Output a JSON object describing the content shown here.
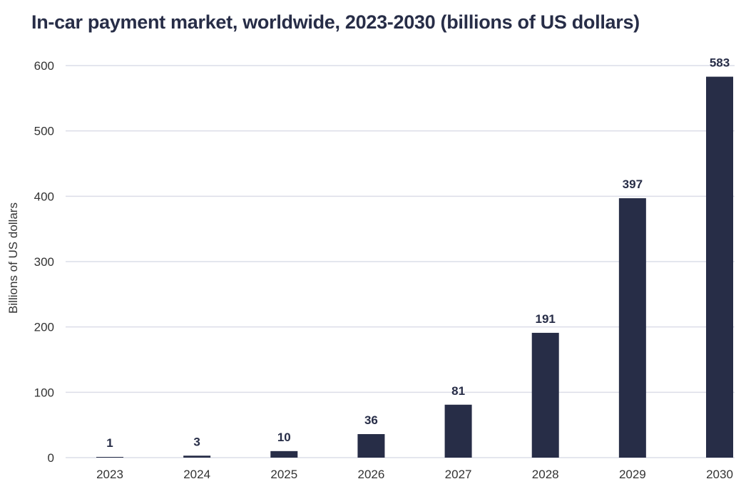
{
  "chart_data": {
    "type": "bar",
    "title": "In-car payment market, worldwide, 2023-2030 (billions of US dollars)",
    "xlabel": "",
    "ylabel": "Billions of US dollars",
    "categories": [
      "2023",
      "2024",
      "2025",
      "2026",
      "2027",
      "2028",
      "2029",
      "2030"
    ],
    "values": [
      1,
      3,
      10,
      36,
      81,
      191,
      397,
      583
    ],
    "data_labels": [
      "1",
      "3",
      "10",
      "36",
      "81",
      "191",
      "397",
      "583"
    ],
    "ylim": [
      0,
      600
    ],
    "yticks": [
      0,
      100,
      200,
      300,
      400,
      500,
      600
    ],
    "grid": true,
    "legend": "none",
    "colors": {
      "bar": "#272d47",
      "grid": "#dcdde8",
      "text": "#333333"
    }
  }
}
